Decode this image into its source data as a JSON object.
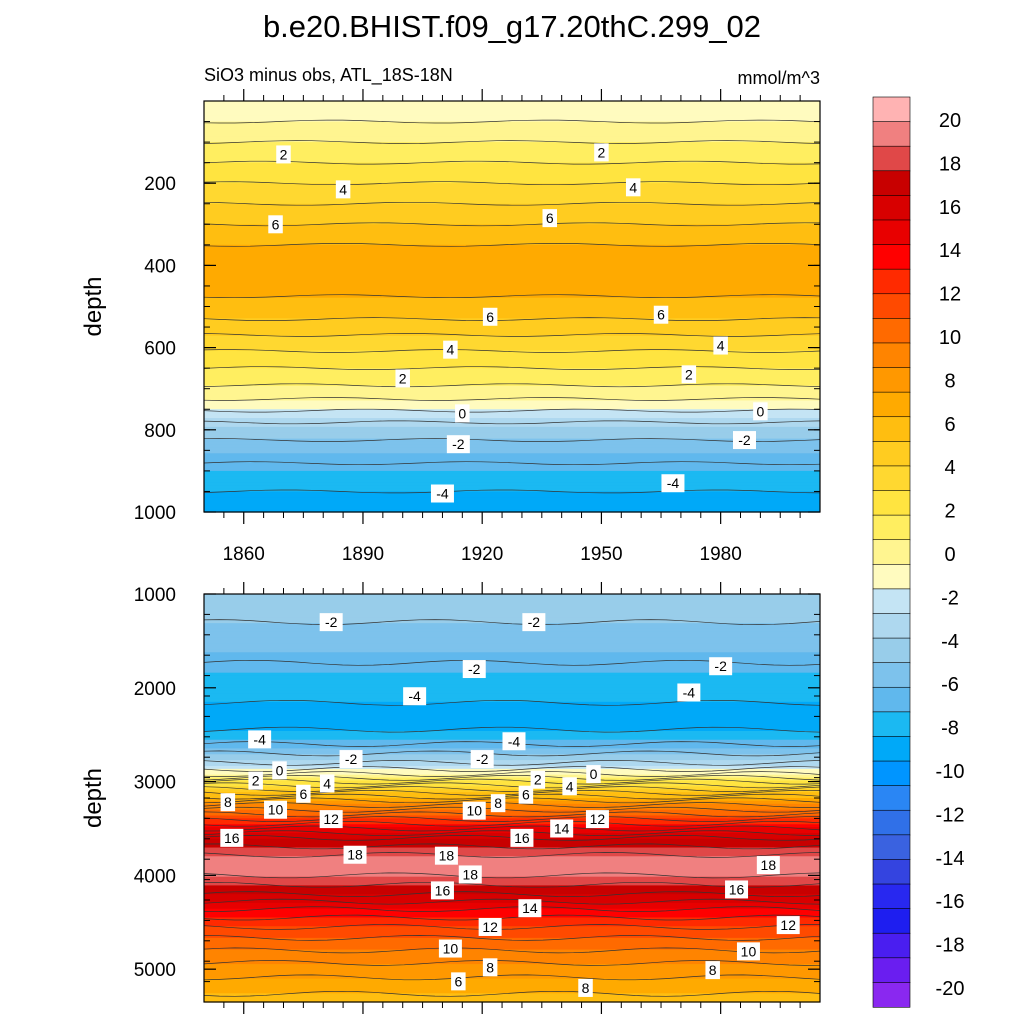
{
  "chart_data": {
    "type": "contour",
    "title": "b.e20.BHIST.f09_g17.20thC.299_02",
    "subtitle_left": "SiO3 minus obs, ATL_18S-18N",
    "units": "mmol/m^3",
    "x": {
      "range": [
        1850,
        2005
      ],
      "ticks": [
        1860,
        1890,
        1920,
        1950,
        1980
      ],
      "tick_labels": [
        "1860",
        "1890",
        "1920",
        "1950",
        "1980"
      ]
    },
    "colorbar": {
      "levels": [
        -20,
        -18,
        -16,
        -14,
        -12,
        -10,
        -8,
        -6,
        -4,
        -2,
        0,
        2,
        4,
        6,
        8,
        10,
        12,
        14,
        16,
        18,
        20
      ],
      "labels": [
        "20",
        "18",
        "16",
        "14",
        "12",
        "10",
        "8",
        "6",
        "4",
        "2",
        "0",
        "-2",
        "-4",
        "-6",
        "-8",
        "-10",
        "-12",
        "-14",
        "-16",
        "-18",
        "-20"
      ],
      "colors": [
        "#ffb3b3",
        "#f08080",
        "#e04848",
        "#c80000",
        "#d80000",
        "#e80000",
        "#ff0000",
        "#ff2a00",
        "#ff4a00",
        "#ff6a00",
        "#ff8400",
        "#ff9800",
        "#ffaa00",
        "#ffbe10",
        "#ffcc20",
        "#ffd830",
        "#ffe440",
        "#ffee60",
        "#fff590",
        "#fffbbf",
        "#c4e4f4",
        "#aed8ef",
        "#98cdea",
        "#7dc2ec",
        "#60b8ed",
        "#1bb9f2",
        "#00a9f8",
        "#0095ff",
        "#2a86f4",
        "#3070e8",
        "#3a62e0",
        "#3444e0",
        "#2828f0",
        "#1e1ef0",
        "#4a1ef0",
        "#6a1ef0",
        "#8a28f0"
      ]
    },
    "panels": [
      {
        "name": "upper",
        "ylabel": "depth",
        "yrange": [
          0,
          1000
        ],
        "yticks": [
          "200",
          "400",
          "600",
          "800",
          "1000"
        ],
        "profile": {
          "depth": [
            0,
            40,
            100,
            200,
            300,
            350,
            400,
            450,
            500,
            550,
            600,
            650,
            700,
            750,
            760,
            800,
            850,
            900,
            950,
            1000
          ],
          "value": [
            0.2,
            0.8,
            2.0,
            4.0,
            6.0,
            7.0,
            7.3,
            7.2,
            6.8,
            5.5,
            4.2,
            3.0,
            1.8,
            0.2,
            -0.4,
            -1.5,
            -2.5,
            -3.3,
            -4.0,
            -4.5
          ]
        },
        "contour_labels": [
          {
            "text": "2",
            "x": 1870,
            "d": 130
          },
          {
            "text": "2",
            "x": 1950,
            "d": 125
          },
          {
            "text": "4",
            "x": 1885,
            "d": 215
          },
          {
            "text": "4",
            "x": 1958,
            "d": 210
          },
          {
            "text": "6",
            "x": 1868,
            "d": 300
          },
          {
            "text": "6",
            "x": 1937,
            "d": 285
          },
          {
            "text": "6",
            "x": 1922,
            "d": 525
          },
          {
            "text": "6",
            "x": 1965,
            "d": 520
          },
          {
            "text": "4",
            "x": 1912,
            "d": 605
          },
          {
            "text": "4",
            "x": 1980,
            "d": 595
          },
          {
            "text": "2",
            "x": 1900,
            "d": 675
          },
          {
            "text": "2",
            "x": 1972,
            "d": 665
          },
          {
            "text": "0",
            "x": 1915,
            "d": 760
          },
          {
            "text": "0",
            "x": 1990,
            "d": 755
          },
          {
            "text": "-2",
            "x": 1914,
            "d": 835
          },
          {
            "text": "-2",
            "x": 1986,
            "d": 825
          },
          {
            "text": "-4",
            "x": 1910,
            "d": 955
          },
          {
            "text": "-4",
            "x": 1968,
            "d": 930
          }
        ]
      },
      {
        "name": "lower",
        "ylabel": "depth",
        "yrange": [
          1000,
          5350
        ],
        "yticks": [
          "1000",
          "2000",
          "3000",
          "4000",
          "5000"
        ],
        "profile": {
          "depth": [
            1000,
            1300,
            1600,
            2000,
            2400,
            2600,
            2800,
            2900,
            3000,
            3200,
            3400,
            3600,
            3800,
            3900,
            4000,
            4200,
            4400,
            4600,
            4800,
            5000,
            5350
          ],
          "value": [
            -1.5,
            -2.0,
            -2.6,
            -3.8,
            -4.3,
            -3.0,
            -1.0,
            0.5,
            3.0,
            8.0,
            12.0,
            16.0,
            18.2,
            18.8,
            18.0,
            16.0,
            13.5,
            11.5,
            10.0,
            8.5,
            6.5
          ]
        },
        "contour_labels": [
          {
            "text": "-2",
            "x": 1882,
            "d": 1300
          },
          {
            "text": "-2",
            "x": 1933,
            "d": 1300
          },
          {
            "text": "-2",
            "x": 1918,
            "d": 1800
          },
          {
            "text": "-2",
            "x": 1980,
            "d": 1770
          },
          {
            "text": "-4",
            "x": 1903,
            "d": 2090
          },
          {
            "text": "-4",
            "x": 1972,
            "d": 2050
          },
          {
            "text": "-4",
            "x": 1864,
            "d": 2550
          },
          {
            "text": "-4",
            "x": 1928,
            "d": 2570
          },
          {
            "text": "-2",
            "x": 1887,
            "d": 2760
          },
          {
            "text": "-2",
            "x": 1920,
            "d": 2760
          },
          {
            "text": "0",
            "x": 1869,
            "d": 2880
          },
          {
            "text": "0",
            "x": 1948,
            "d": 2920
          },
          {
            "text": "2",
            "x": 1863,
            "d": 2990
          },
          {
            "text": "2",
            "x": 1934,
            "d": 2980
          },
          {
            "text": "4",
            "x": 1881,
            "d": 3020
          },
          {
            "text": "4",
            "x": 1942,
            "d": 3050
          },
          {
            "text": "6",
            "x": 1875,
            "d": 3130
          },
          {
            "text": "6",
            "x": 1931,
            "d": 3140
          },
          {
            "text": "8",
            "x": 1856,
            "d": 3220
          },
          {
            "text": "8",
            "x": 1924,
            "d": 3230
          },
          {
            "text": "10",
            "x": 1868,
            "d": 3300
          },
          {
            "text": "10",
            "x": 1918,
            "d": 3310
          },
          {
            "text": "12",
            "x": 1882,
            "d": 3400
          },
          {
            "text": "12",
            "x": 1949,
            "d": 3400
          },
          {
            "text": "14",
            "x": 1940,
            "d": 3500
          },
          {
            "text": "16",
            "x": 1857,
            "d": 3600
          },
          {
            "text": "16",
            "x": 1930,
            "d": 3600
          },
          {
            "text": "18",
            "x": 1888,
            "d": 3780
          },
          {
            "text": "18",
            "x": 1911,
            "d": 3790
          },
          {
            "text": "18",
            "x": 1992,
            "d": 3890
          },
          {
            "text": "18",
            "x": 1917,
            "d": 3990
          },
          {
            "text": "16",
            "x": 1910,
            "d": 4160
          },
          {
            "text": "16",
            "x": 1984,
            "d": 4150
          },
          {
            "text": "14",
            "x": 1932,
            "d": 4350
          },
          {
            "text": "12",
            "x": 1922,
            "d": 4550
          },
          {
            "text": "12",
            "x": 1997,
            "d": 4530
          },
          {
            "text": "10",
            "x": 1912,
            "d": 4780
          },
          {
            "text": "10",
            "x": 1987,
            "d": 4810
          },
          {
            "text": "8",
            "x": 1922,
            "d": 4980
          },
          {
            "text": "8",
            "x": 1978,
            "d": 5010
          },
          {
            "text": "6",
            "x": 1914,
            "d": 5130
          },
          {
            "text": "8",
            "x": 1946,
            "d": 5200
          }
        ]
      }
    ]
  }
}
